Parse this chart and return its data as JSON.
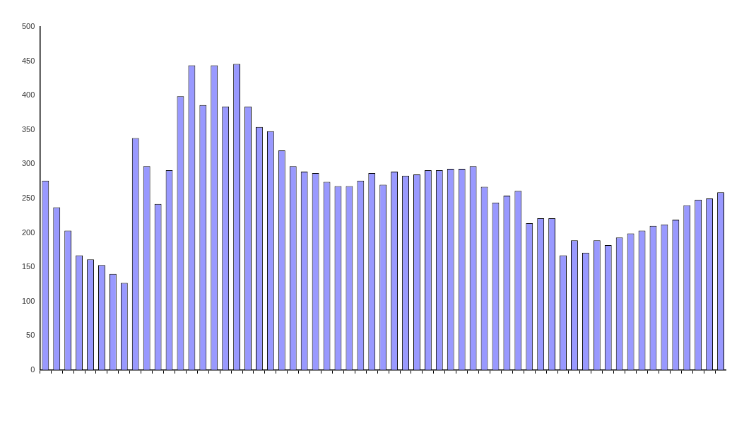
{
  "chart_data": {
    "type": "bar",
    "categories": [
      null,
      null,
      null,
      null,
      null,
      null,
      null,
      null,
      null,
      null,
      null,
      null,
      null,
      null,
      null,
      null,
      null,
      null,
      null,
      null,
      null,
      null,
      null,
      null,
      null,
      null,
      null,
      null,
      null,
      null,
      null,
      null,
      null,
      null,
      null,
      null,
      null,
      null,
      null,
      null,
      null,
      null,
      null,
      null,
      null,
      null,
      null,
      null,
      null,
      null,
      null,
      null,
      null,
      null,
      null,
      null,
      null,
      null,
      null,
      null,
      null
    ],
    "values": [
      276,
      237,
      203,
      167,
      161,
      153,
      140,
      127,
      338,
      297,
      242,
      291,
      399,
      444,
      386,
      444,
      384,
      446,
      384,
      354,
      348,
      320,
      297,
      289,
      287,
      274,
      268,
      268,
      276,
      287,
      270,
      289,
      283,
      285,
      291,
      291,
      293,
      293,
      297,
      267,
      244,
      254,
      261,
      214,
      221,
      221,
      167,
      189,
      171,
      189,
      182,
      193,
      199,
      203,
      210,
      212,
      219,
      240,
      248,
      250,
      259
    ],
    "color": "#9999ff",
    "ylim": [
      0,
      500
    ],
    "yticks": [
      0,
      50,
      100,
      150,
      200,
      250,
      300,
      350,
      400,
      450,
      500
    ],
    "grid": false,
    "legend": false
  }
}
